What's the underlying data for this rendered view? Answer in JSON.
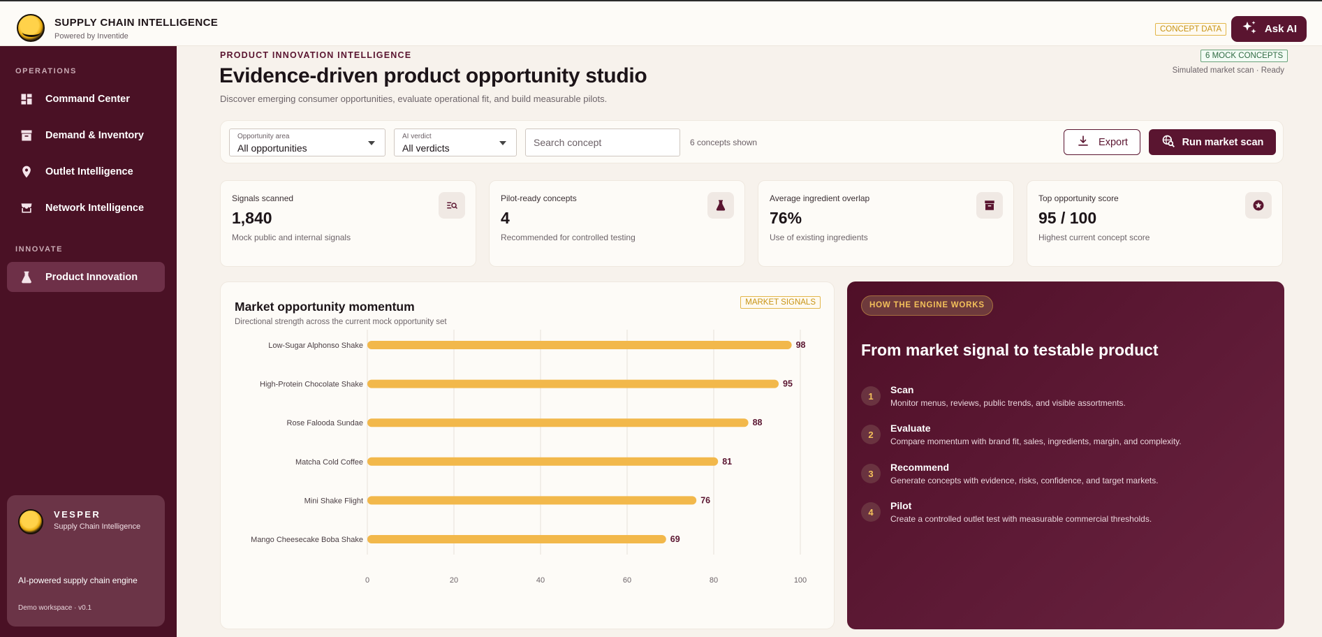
{
  "topbar": {
    "brand_title": "SUPPLY CHAIN INTELLIGENCE",
    "brand_sub": "Powered by Inventide",
    "concept_badge": "CONCEPT DATA",
    "ask_ai": "Ask AI"
  },
  "sidebar": {
    "section_operations": "OPERATIONS",
    "section_innovate": "INNOVATE",
    "items": [
      {
        "label": "Command Center",
        "icon": "dashboard-icon"
      },
      {
        "label": "Demand & Inventory",
        "icon": "archive-icon"
      },
      {
        "label": "Outlet Intelligence",
        "icon": "location-pin-icon"
      },
      {
        "label": "Network Intelligence",
        "icon": "storefront-icon"
      },
      {
        "label": "Product Innovation",
        "icon": "flask-icon",
        "active": true
      }
    ],
    "card": {
      "title": "VESPER",
      "subtitle": "Supply Chain Intelligence",
      "description": "AI-powered supply chain engine",
      "version": "Demo workspace · v0.1"
    }
  },
  "header": {
    "eyebrow": "PRODUCT INNOVATION INTELLIGENCE",
    "title": "Evidence-driven product opportunity studio",
    "description": "Discover emerging consumer opportunities, evaluate operational fit, and build measurable pilots.",
    "mock_badge": "6 MOCK CONCEPTS",
    "scan_status": "Simulated market scan · Ready"
  },
  "filters": {
    "area": {
      "label": "Opportunity area",
      "value": "All opportunities"
    },
    "verdict": {
      "label": "AI verdict",
      "value": "All verdicts"
    },
    "search_placeholder": "Search concept",
    "count": "6 concepts shown",
    "export": "Export",
    "run": "Run market scan"
  },
  "kpis": [
    {
      "label": "Signals scanned",
      "value": "1,840",
      "note": "Mock public and internal signals",
      "icon": "search-list-icon"
    },
    {
      "label": "Pilot-ready concepts",
      "value": "4",
      "note": "Recommended for controlled testing",
      "icon": "flask-icon"
    },
    {
      "label": "Average ingredient overlap",
      "value": "76%",
      "note": "Use of existing ingredients",
      "icon": "archive-icon"
    },
    {
      "label": "Top opportunity score",
      "value": "95 / 100",
      "note": "Highest current concept score",
      "icon": "star-badge-icon"
    }
  ],
  "chart": {
    "title": "Market opportunity momentum",
    "subtitle": "Directional strength across the current mock opportunity set",
    "badge": "MARKET SIGNALS"
  },
  "chart_data": {
    "type": "bar",
    "orientation": "horizontal",
    "categories": [
      "Low-Sugar Alphonso Shake",
      "High-Protein Chocolate Shake",
      "Rose Falooda Sundae",
      "Matcha Cold Coffee",
      "Mini Shake Flight",
      "Mango Cheesecake Boba Shake"
    ],
    "values": [
      98,
      95,
      88,
      81,
      76,
      69
    ],
    "xlim": [
      0,
      100
    ],
    "xticks": [
      0,
      20,
      40,
      60,
      80,
      100
    ],
    "grid": true,
    "bar_color": "#f2b84b",
    "label_color": "#5a1530"
  },
  "engine": {
    "pill": "HOW THE ENGINE WORKS",
    "title": "From market signal to testable product",
    "steps": [
      {
        "num": "1",
        "title": "Scan",
        "desc": "Monitor menus, reviews, public trends, and visible assortments."
      },
      {
        "num": "2",
        "title": "Evaluate",
        "desc": "Compare momentum with brand fit, sales, ingredients, margin, and complexity."
      },
      {
        "num": "3",
        "title": "Recommend",
        "desc": "Generate concepts with evidence, risks, confidence, and target markets."
      },
      {
        "num": "4",
        "title": "Pilot",
        "desc": "Create a controlled outlet test with measurable commercial thresholds."
      }
    ]
  },
  "colors": {
    "brand": "#5a1530",
    "sidebar": "#4a1125",
    "accent": "#f2b84b"
  }
}
